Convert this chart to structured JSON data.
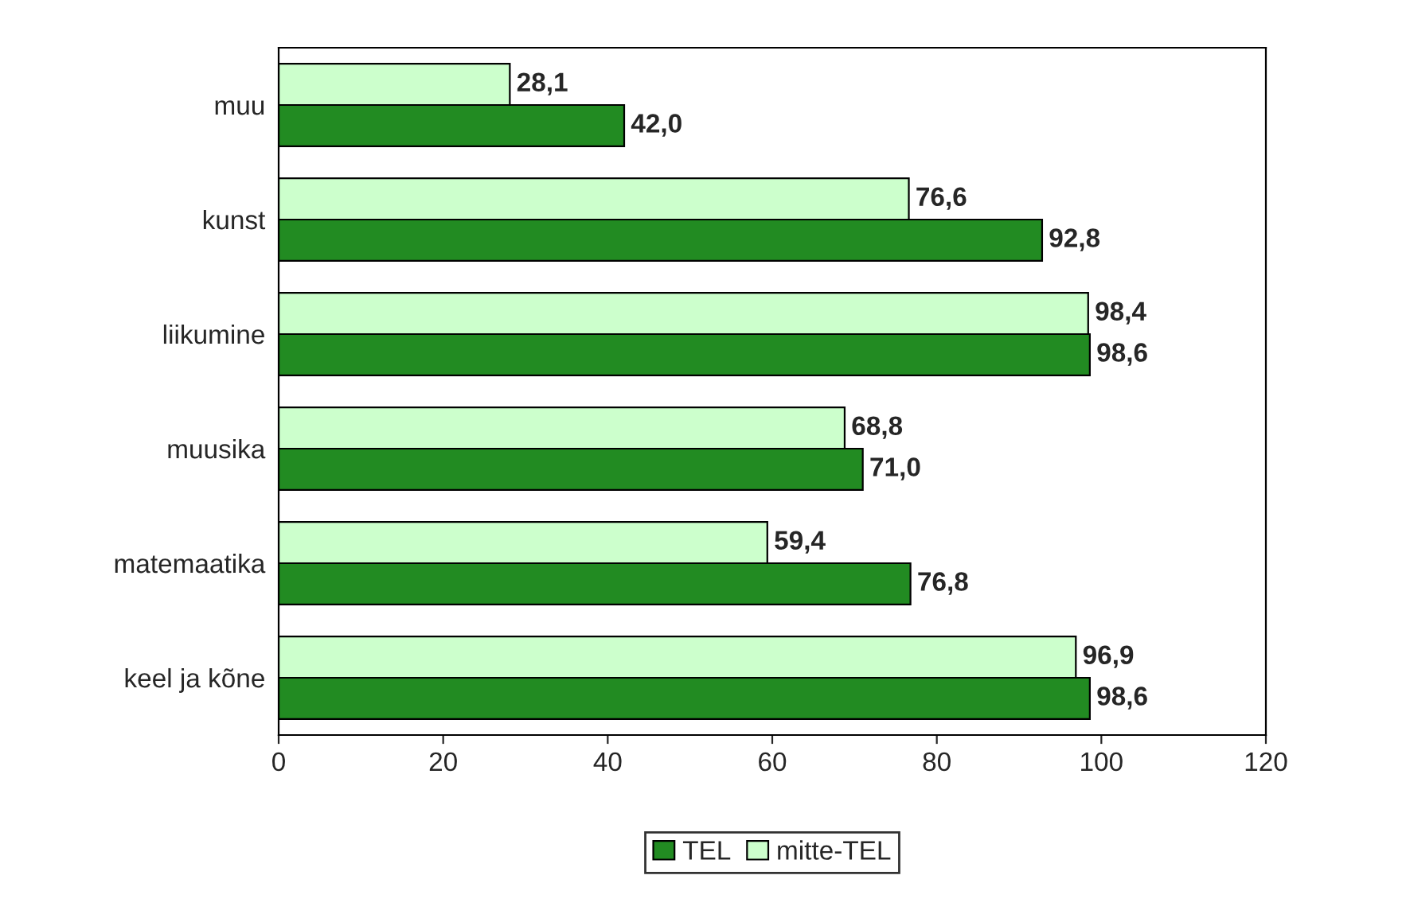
{
  "chart_data": {
    "type": "bar",
    "orientation": "horizontal",
    "categories": [
      "muu",
      "kunst",
      "liikumine",
      "muusika",
      "matemaatika",
      "keel ja kõne"
    ],
    "series": [
      {
        "name": "TEL",
        "color": "#228b22",
        "values": [
          42.0,
          92.8,
          98.6,
          71.0,
          76.8,
          98.6
        ],
        "value_labels": [
          "42,0",
          "92,8",
          "98,6",
          "71,0",
          "76,8",
          "98,6"
        ]
      },
      {
        "name": "mitte-TEL",
        "color": "#ccffcc",
        "values": [
          28.1,
          76.6,
          98.4,
          68.8,
          59.4,
          96.9
        ],
        "value_labels": [
          "28,1",
          "76,6",
          "98,4",
          "68,8",
          "59,4",
          "96,9"
        ]
      }
    ],
    "xlim": [
      0,
      120
    ],
    "xticks": [
      0,
      20,
      40,
      60,
      80,
      100,
      120
    ],
    "grid": false,
    "legend": "bottom"
  }
}
